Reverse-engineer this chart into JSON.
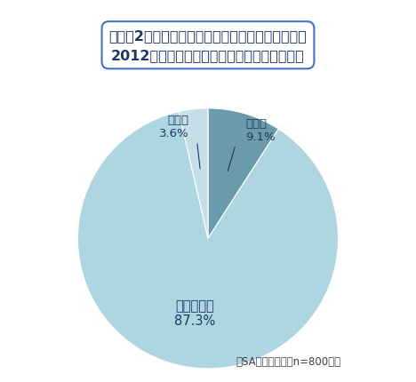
{
  "title_line1": "現在の2リットルペットボトルの水の備蓄本数は、",
  "title_line2": "2012年と比較して量に変化はありましたか？",
  "slices": [
    {
      "label": "増えた",
      "value": 9.1,
      "color": "#6b9aab"
    },
    {
      "label": "変わらない",
      "value": 87.3,
      "color": "#aed6e0"
    },
    {
      "label": "減った",
      "value": 3.6,
      "color": "#c5dfe8"
    }
  ],
  "inner_labels": [
    {
      "label": "変わらない\n87.3%",
      "angle_mid": null
    }
  ],
  "footnote": "（SA、単位：％　n=800人）",
  "bg_color": "#ffffff",
  "title_box_color": "#ffffff",
  "title_border_color": "#4472c4",
  "title_text_color": "#1f3864",
  "label_text_color": "#1f3864",
  "footnote_color": "#404040",
  "start_angle": 90,
  "title_fontsize": 11.5,
  "label_fontsize": 9.5,
  "inner_label_fontsize": 10.5,
  "footnote_fontsize": 8.5
}
